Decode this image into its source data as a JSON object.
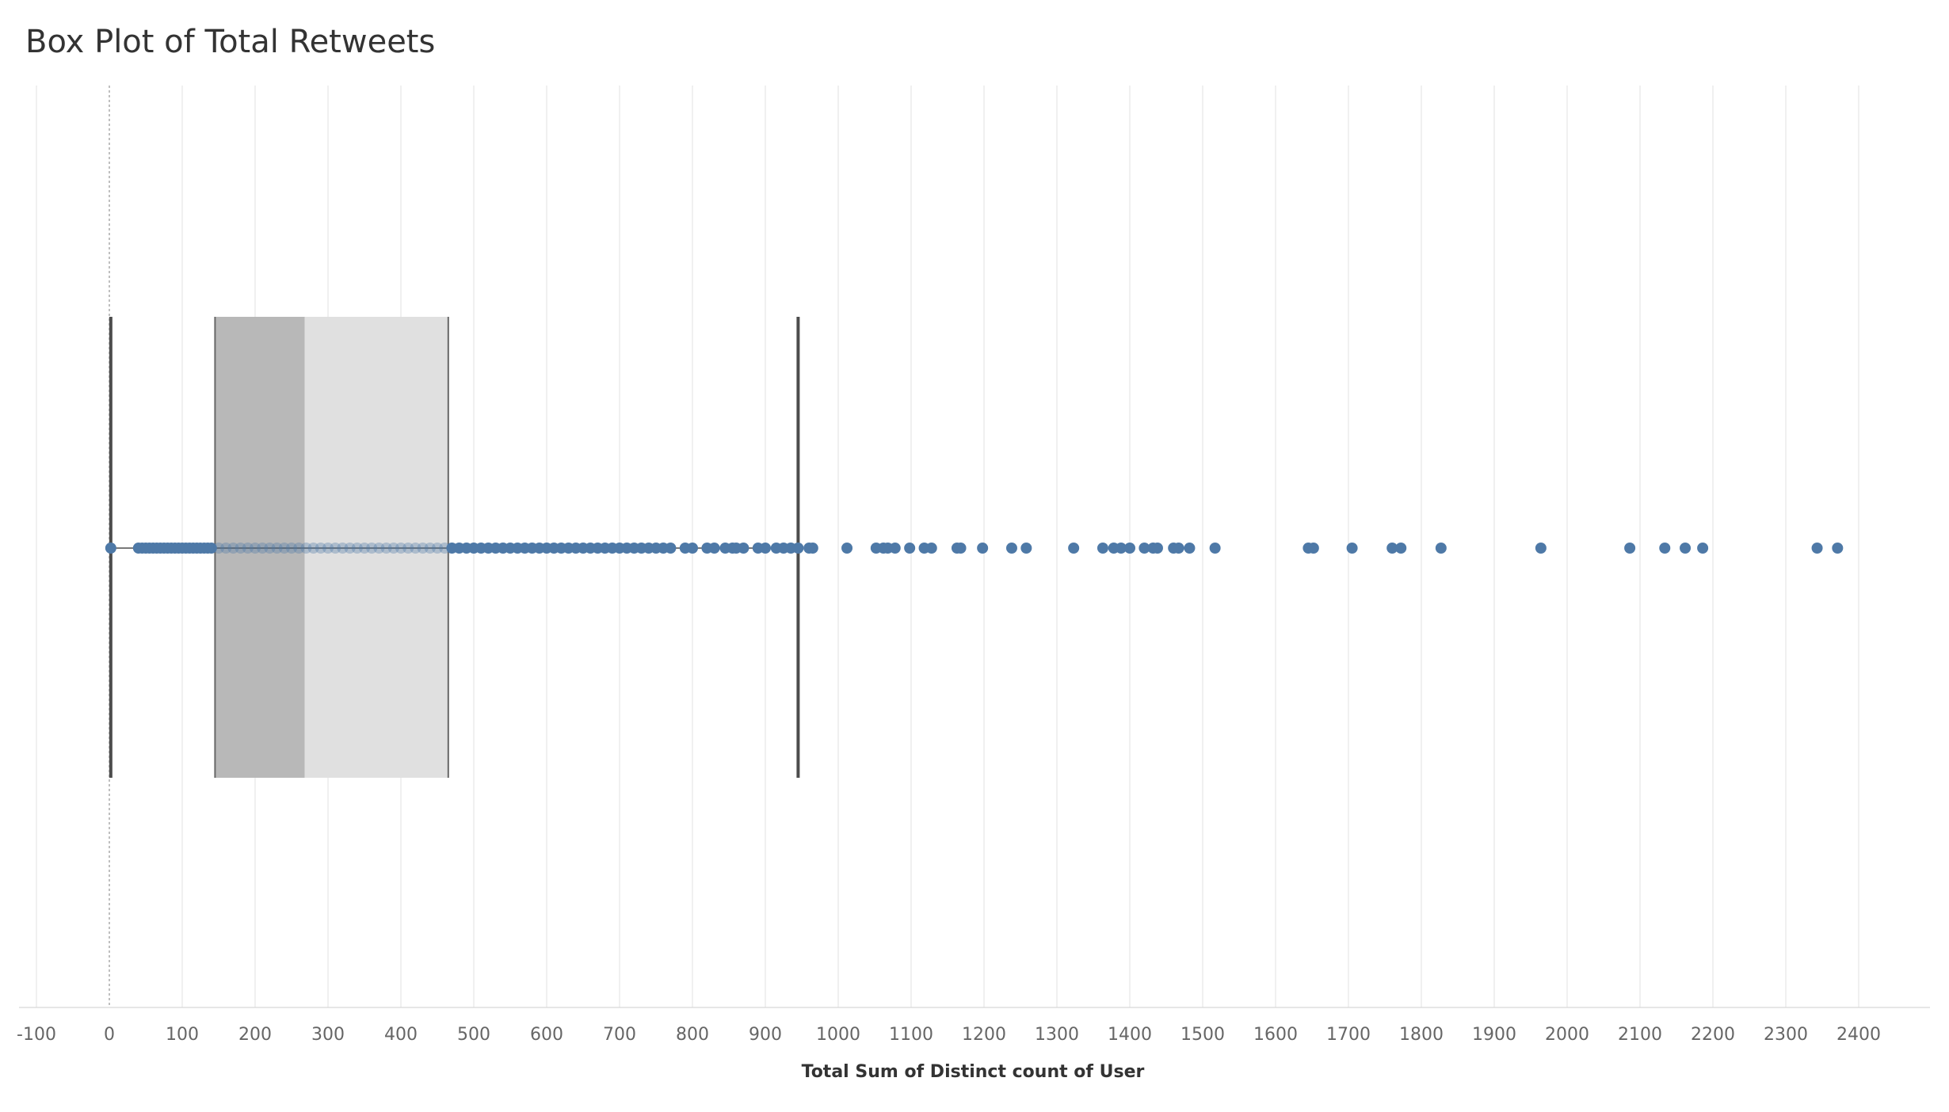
{
  "chart_data": {
    "type": "box",
    "title": "Box Plot of Total Retweets",
    "xlabel": "Total Sum of Distinct count of User",
    "ylabel": "",
    "xlim": [
      -110,
      2470
    ],
    "xticks": [
      -100,
      0,
      100,
      200,
      300,
      400,
      500,
      600,
      700,
      800,
      900,
      1000,
      1100,
      1200,
      1300,
      1400,
      1500,
      1600,
      1700,
      1800,
      1900,
      2000,
      2100,
      2200,
      2300,
      2400
    ],
    "grid": true,
    "box": {
      "lower_whisker": 2,
      "q1": 145,
      "median": 268,
      "q3": 465,
      "upper_whisker": 945
    },
    "points": [
      2,
      40,
      45,
      50,
      55,
      60,
      65,
      70,
      75,
      80,
      85,
      90,
      95,
      100,
      105,
      110,
      115,
      120,
      125,
      130,
      135,
      140,
      150,
      160,
      170,
      180,
      190,
      200,
      210,
      220,
      230,
      240,
      250,
      260,
      270,
      280,
      290,
      300,
      310,
      320,
      330,
      340,
      350,
      360,
      370,
      380,
      390,
      400,
      410,
      420,
      430,
      440,
      450,
      460,
      470,
      480,
      490,
      500,
      510,
      520,
      530,
      540,
      550,
      560,
      570,
      580,
      590,
      600,
      610,
      620,
      630,
      640,
      650,
      660,
      670,
      680,
      690,
      700,
      710,
      720,
      730,
      740,
      750,
      760,
      770,
      790,
      800,
      820,
      830,
      845,
      855,
      860,
      870,
      890,
      900,
      915,
      925,
      935,
      945,
      960,
      965,
      1012,
      1052,
      1062,
      1068,
      1078,
      1098,
      1118,
      1128,
      1163,
      1168,
      1198,
      1238,
      1258,
      1323,
      1363,
      1378,
      1388,
      1400,
      1420,
      1432,
      1438,
      1460,
      1467,
      1482,
      1517,
      1645,
      1652,
      1705,
      1760,
      1772,
      1827,
      1964,
      2086,
      2134,
      2162,
      2186,
      2343,
      2371
    ],
    "colors": {
      "point": "#4e79a7",
      "box_lower": "#b8b8b8",
      "box_upper": "#e0e0e0",
      "whisker": "#4d4d4d",
      "grid": "#ececec",
      "zero_line": "#aaaaaa"
    }
  }
}
